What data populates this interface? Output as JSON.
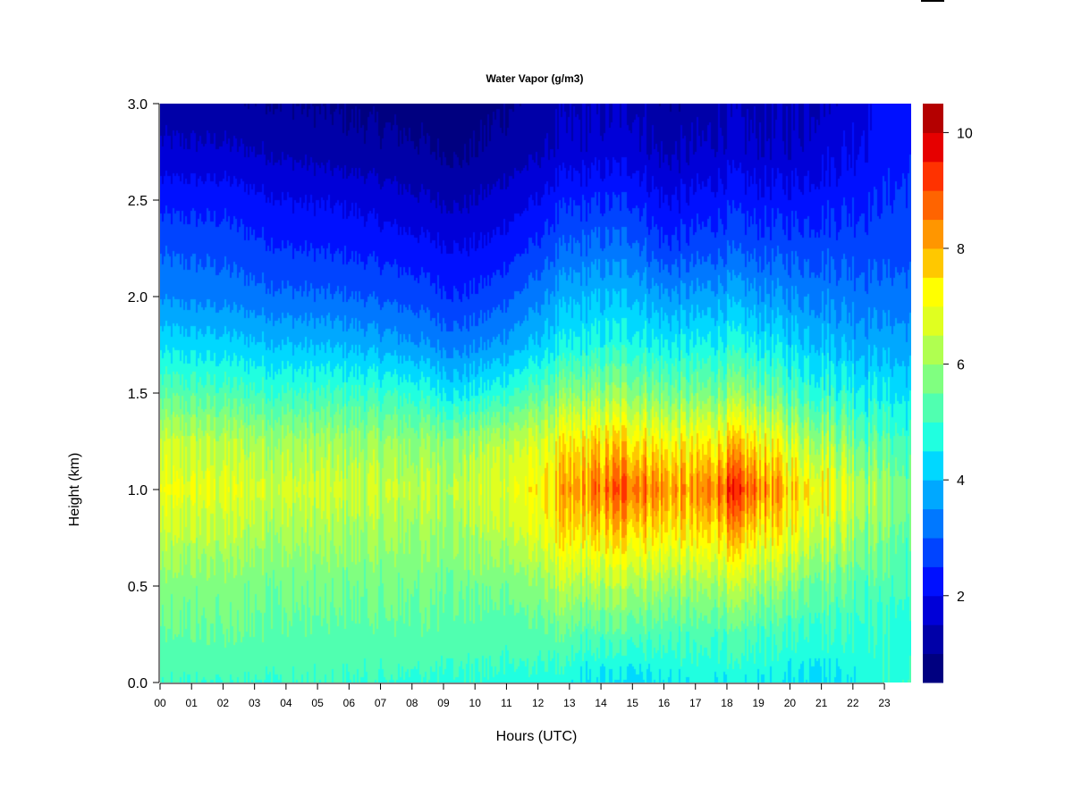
{
  "chart_data": {
    "type": "heatmap",
    "title": "Water Vapor (g/m3)",
    "xlabel": "Hours (UTC)",
    "ylabel": "Height (km)",
    "xlim": [
      0,
      23.85
    ],
    "ylim": [
      0.0,
      3.0
    ],
    "x_ticks": [
      "00",
      "01",
      "02",
      "03",
      "04",
      "05",
      "06",
      "07",
      "08",
      "09",
      "10",
      "11",
      "12",
      "13",
      "14",
      "15",
      "16",
      "17",
      "18",
      "19",
      "20",
      "21",
      "22",
      "23"
    ],
    "y_ticks": [
      "0.0",
      "0.5",
      "1.0",
      "1.5",
      "2.0",
      "2.5",
      "3.0"
    ],
    "colorbar": {
      "min": 0.5,
      "max": 10.5,
      "levels": [
        0.5,
        1.0,
        1.5,
        2.0,
        2.5,
        3.0,
        3.5,
        4.0,
        4.5,
        5.0,
        5.5,
        6.0,
        6.5,
        7.0,
        7.5,
        8.0,
        8.5,
        9.0,
        9.5,
        10.0,
        10.5
      ],
      "colors": [
        "#000080",
        "#0000a8",
        "#0000d8",
        "#0010ff",
        "#0044ff",
        "#0078ff",
        "#00a8ff",
        "#00d8ff",
        "#20ffe0",
        "#50ffb0",
        "#80ff80",
        "#b0ff50",
        "#e0ff20",
        "#ffff00",
        "#ffc800",
        "#ff9600",
        "#ff6400",
        "#ff3200",
        "#e60000",
        "#b40000"
      ],
      "tick_labels": [
        "2",
        "4",
        "6",
        "8",
        "10"
      ],
      "tick_values": [
        2,
        4,
        6,
        8,
        10
      ]
    },
    "field": {
      "hours": [
        0,
        2,
        4,
        6,
        8,
        9.5,
        10.5,
        12,
        12.6,
        13.5,
        15,
        16,
        17,
        18,
        19,
        20,
        21,
        22,
        23,
        23.85
      ],
      "heights": [
        0.0,
        0.25,
        0.5,
        0.75,
        1.0,
        1.25,
        1.5,
        1.75,
        2.0,
        2.25,
        2.5,
        2.75,
        3.0
      ],
      "values": [
        [
          5.0,
          5.0,
          5.0,
          5.0,
          4.9,
          4.9,
          4.9,
          4.8,
          4.7,
          4.4,
          4.3,
          4.5,
          4.6,
          4.6,
          4.6,
          4.5,
          4.4,
          4.6,
          4.9,
          5.0
        ],
        [
          5.4,
          5.5,
          5.4,
          5.3,
          5.4,
          5.3,
          5.2,
          5.3,
          5.4,
          5.2,
          5.3,
          5.2,
          5.1,
          5.2,
          5.1,
          5.0,
          5.0,
          5.0,
          4.9,
          4.8
        ],
        [
          5.7,
          5.7,
          5.6,
          5.6,
          5.6,
          5.6,
          5.6,
          5.8,
          6.2,
          6.1,
          6.3,
          6.0,
          5.9,
          6.3,
          6.0,
          5.8,
          5.6,
          5.4,
          5.2,
          5.0
        ],
        [
          6.3,
          6.3,
          6.1,
          6.0,
          6.0,
          6.0,
          6.2,
          6.7,
          7.1,
          7.2,
          7.6,
          7.2,
          7.1,
          7.7,
          7.2,
          7.0,
          6.6,
          6.2,
          5.7,
          5.3
        ],
        [
          6.9,
          6.8,
          6.6,
          6.5,
          6.4,
          6.4,
          6.7,
          7.2,
          7.6,
          8.2,
          9.0,
          8.3,
          8.0,
          9.1,
          8.6,
          7.6,
          7.4,
          6.7,
          6.0,
          5.5
        ],
        [
          6.4,
          6.3,
          6.1,
          6.0,
          5.9,
          5.9,
          6.2,
          6.6,
          6.9,
          7.3,
          7.6,
          7.1,
          7.0,
          7.5,
          7.2,
          6.6,
          6.3,
          5.8,
          5.3,
          5.0
        ],
        [
          5.3,
          5.2,
          5.0,
          5.0,
          4.9,
          4.4,
          4.7,
          5.3,
          5.6,
          5.8,
          6.0,
          5.6,
          5.5,
          5.8,
          5.6,
          5.2,
          5.0,
          4.8,
          4.5,
          4.3
        ],
        [
          4.3,
          4.2,
          4.0,
          3.9,
          3.6,
          3.3,
          3.5,
          4.1,
          4.4,
          4.6,
          4.8,
          4.5,
          4.5,
          4.7,
          4.5,
          4.3,
          4.1,
          3.9,
          3.8,
          3.7
        ],
        [
          3.4,
          3.3,
          3.1,
          3.0,
          2.8,
          2.5,
          2.7,
          3.3,
          3.7,
          3.9,
          4.0,
          3.6,
          3.6,
          3.8,
          3.6,
          3.5,
          3.4,
          3.3,
          3.2,
          3.2
        ],
        [
          2.9,
          2.8,
          2.5,
          2.4,
          2.2,
          2.0,
          2.1,
          2.6,
          2.9,
          3.1,
          3.2,
          2.6,
          2.7,
          2.9,
          2.8,
          2.8,
          2.8,
          2.8,
          2.8,
          2.8
        ],
        [
          2.3,
          2.3,
          2.0,
          1.9,
          1.6,
          1.4,
          1.6,
          2.0,
          2.3,
          2.4,
          2.5,
          2.0,
          2.1,
          2.3,
          2.2,
          2.2,
          2.3,
          2.4,
          2.5,
          2.6
        ],
        [
          1.6,
          1.6,
          1.4,
          1.2,
          1.1,
          0.9,
          1.1,
          1.4,
          1.6,
          1.7,
          1.8,
          1.4,
          1.5,
          1.7,
          1.6,
          1.6,
          1.8,
          2.0,
          2.3,
          2.4
        ],
        [
          1.2,
          1.1,
          1.0,
          0.9,
          0.8,
          0.6,
          0.9,
          1.1,
          1.3,
          1.4,
          1.5,
          1.1,
          1.2,
          1.4,
          1.3,
          1.4,
          1.6,
          1.8,
          2.2,
          2.3
        ]
      ]
    },
    "legend": "colorbar-right",
    "grid": false
  }
}
